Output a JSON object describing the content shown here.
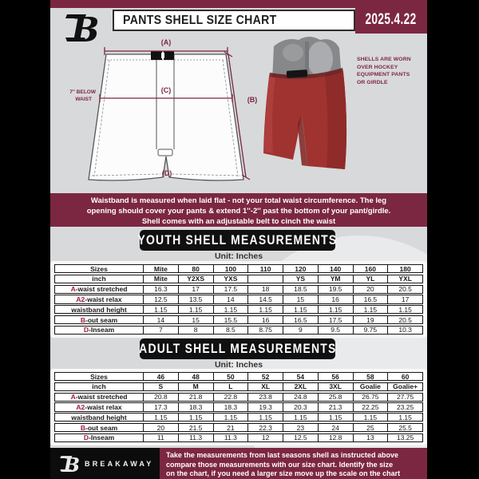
{
  "colors": {
    "maroon": "#7c2742",
    "shell_red": "#a03230",
    "banner_black": "#101010"
  },
  "header": {
    "title": "PANTS SHELL SIZE CHART",
    "date": "2025.4.22"
  },
  "diagram": {
    "label_a": "(A)",
    "label_b": "(B)",
    "label_c": "(C)",
    "label_d": "(D)",
    "waist_note_line1": "7'' BELOW",
    "waist_note_line2": "WAIST"
  },
  "photo": {
    "note_lines": [
      "SHELLS ARE WORN",
      "OVER HOCKEY",
      "EQUIPMENT PANTS",
      "OR GIRDLE"
    ]
  },
  "mid_banner": {
    "lines": [
      "Waistband is measured when laid flat - not your total waist circumference. The leg",
      "opening should cover your pants & extend 1''-2'' past the bottom of your pant/girdle.",
      "Shell comes with an adjustable belt to cinch the waist"
    ]
  },
  "youth": {
    "heading": "YOUTH SHELL MEASUREMENTS",
    "unit": "Unit: Inches",
    "rows": [
      {
        "header": true,
        "prefix": "",
        "label": "Sizes",
        "values": [
          "Mite",
          "80",
          "100",
          "110",
          "120",
          "140",
          "160",
          "180"
        ]
      },
      {
        "header": true,
        "prefix": "",
        "label": "inch",
        "values": [
          "Mite",
          "Y2XS",
          "YXS",
          "",
          "YS",
          "YM",
          "YL",
          "YXL"
        ]
      },
      {
        "header": false,
        "prefix": "A",
        "label": "-waist stretched",
        "values": [
          "16.3",
          "17",
          "17.5",
          "18",
          "18.5",
          "19.5",
          "20",
          "20.5"
        ]
      },
      {
        "header": false,
        "prefix": "A2",
        "label": "-waist relax",
        "values": [
          "12.5",
          "13.5",
          "14",
          "14.5",
          "15",
          "16",
          "16.5",
          "17"
        ]
      },
      {
        "header": false,
        "prefix": "",
        "label": "waistband height",
        "values": [
          "1.15",
          "1.15",
          "1.15",
          "1.15",
          "1.15",
          "1.15",
          "1.15",
          "1.15"
        ]
      },
      {
        "header": false,
        "prefix": "B",
        "label": "-out seam",
        "values": [
          "14",
          "15",
          "15.5",
          "16",
          "16.5",
          "17.5",
          "19",
          "20.5"
        ]
      },
      {
        "header": false,
        "prefix": "D",
        "label": "-Inseam",
        "values": [
          "7",
          "8",
          "8.5",
          "8.75",
          "9",
          "9.5",
          "9.75",
          "10.3"
        ]
      }
    ]
  },
  "adult": {
    "heading": "ADULT SHELL MEASUREMENTS",
    "unit": "Unit: Inches",
    "rows": [
      {
        "header": true,
        "prefix": "",
        "label": "Sizes",
        "values": [
          "46",
          "48",
          "50",
          "52",
          "54",
          "56",
          "58",
          "60"
        ]
      },
      {
        "header": true,
        "prefix": "",
        "label": "inch",
        "values": [
          "S",
          "M",
          "L",
          "XL",
          "2XL",
          "3XL",
          "Goalie",
          "Goalie+"
        ]
      },
      {
        "header": false,
        "prefix": "A",
        "label": "-waist stretched",
        "values": [
          "20.8",
          "21.8",
          "22.8",
          "23.8",
          "24.8",
          "25.8",
          "26.75",
          "27.75"
        ]
      },
      {
        "header": false,
        "prefix": "A2",
        "label": "-waist relax",
        "values": [
          "17.3",
          "18.3",
          "18.3",
          "19.3",
          "20.3",
          "21.3",
          "22.25",
          "23.25"
        ]
      },
      {
        "header": false,
        "prefix": "",
        "label": "waistband height",
        "values": [
          "1.15",
          "1.15",
          "1.15",
          "1.15",
          "1.15",
          "1.15",
          "1.15",
          "1.15"
        ]
      },
      {
        "header": false,
        "prefix": "B",
        "label": "-out seam",
        "values": [
          "20",
          "21.5",
          "21",
          "22.3",
          "23",
          "24",
          "25",
          "25.5"
        ]
      },
      {
        "header": false,
        "prefix": "D",
        "label": "-Inseam",
        "values": [
          "11",
          "11.3",
          "11.3",
          "12",
          "12.5",
          "12.8",
          "13",
          "13.25"
        ]
      }
    ]
  },
  "footer": {
    "brand": "BREAKAWAY",
    "note_lines": [
      "Take the measurements from last seasons shell as instructed above",
      "compare those measurements  with our size chart. Identify the size",
      "on the chart, if you need a larger size move up the scale on the chart"
    ]
  }
}
